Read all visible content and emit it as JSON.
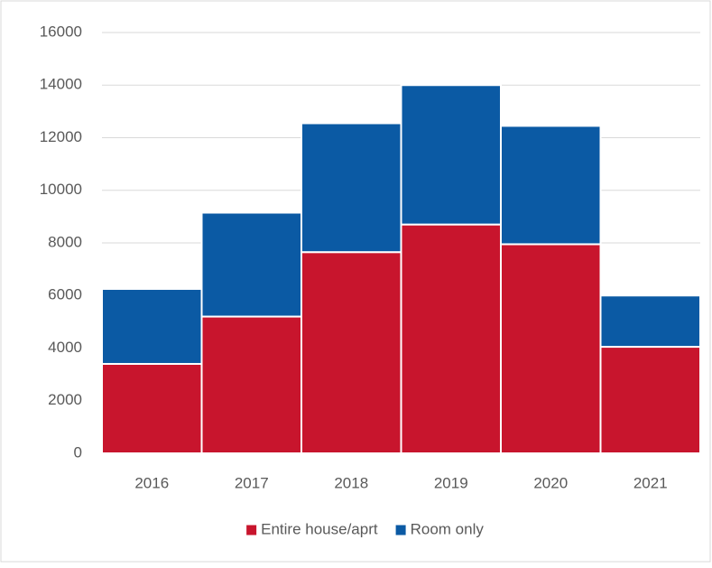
{
  "chart_data": {
    "type": "stacked_bar",
    "categories": [
      "2016",
      "2017",
      "2018",
      "2019",
      "2020",
      "2021"
    ],
    "series": [
      {
        "name": "Entire house/aprt",
        "color": "#c8152d",
        "values": [
          3400,
          5200,
          7650,
          8700,
          7950,
          4050
        ]
      },
      {
        "name": "Room only",
        "color": "#0b5aa4",
        "values": [
          2850,
          3950,
          4900,
          5300,
          4500,
          1950
        ]
      }
    ],
    "ylim": [
      0,
      16000
    ],
    "yticks": [
      0,
      2000,
      4000,
      6000,
      8000,
      10000,
      12000,
      14000,
      16000
    ],
    "grid": true,
    "legend": "bottom"
  }
}
